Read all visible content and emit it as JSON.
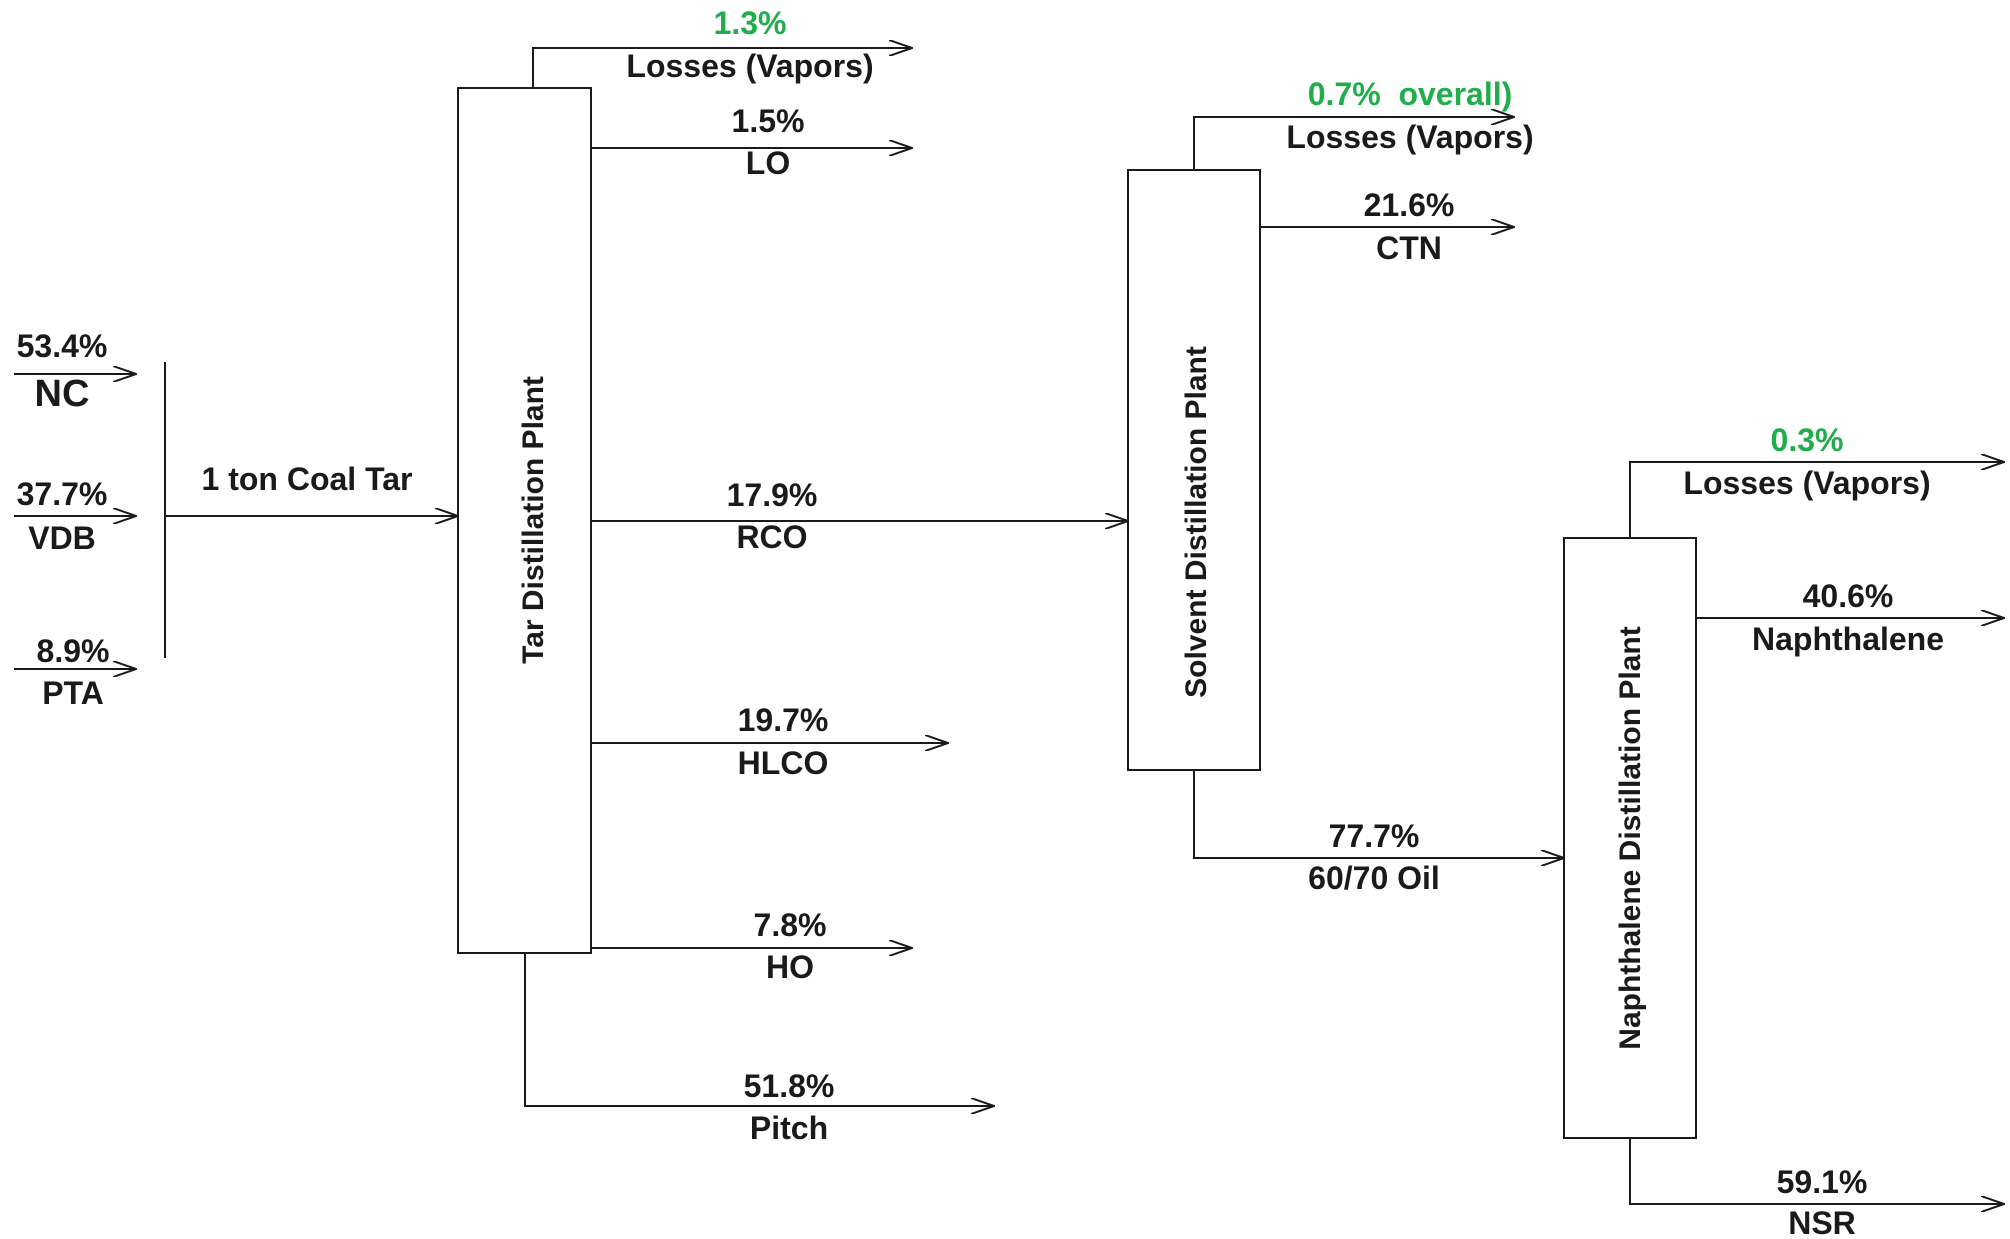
{
  "inputs": {
    "nc": {
      "pct": "53.4%",
      "name": "NC"
    },
    "vdb": {
      "pct": "37.7%",
      "name": "VDB"
    },
    "pta": {
      "pct": "8.9%",
      "name": "PTA"
    },
    "feed_label": "1 ton Coal Tar"
  },
  "plants": {
    "tar": "Tar Distillation Plant",
    "solvent": "Solvent Distillation Plant",
    "naphthalene": "Naphthalene Distillation Plant"
  },
  "tar_outputs": {
    "losses": {
      "pct": "1.3%",
      "name": "Losses (Vapors)"
    },
    "lo": {
      "pct": "1.5%",
      "name": "LO"
    },
    "rco": {
      "pct": "17.9%",
      "name": "RCO"
    },
    "hlco": {
      "pct": "19.7%",
      "name": "HLCO"
    },
    "ho": {
      "pct": "7.8%",
      "name": "HO"
    },
    "pitch": {
      "pct": "51.8%",
      "name": "Pitch"
    }
  },
  "solvent_outputs": {
    "losses": {
      "pct": "0.7%  overall)",
      "name": "Losses (Vapors)"
    },
    "ctn": {
      "pct": "21.6%",
      "name": "CTN"
    },
    "oil": {
      "pct": "77.7%",
      "name": "60/70 Oil"
    }
  },
  "naphthalene_outputs": {
    "losses": {
      "pct": "0.3%",
      "name": "Losses (Vapors)"
    },
    "naphthalene": {
      "pct": "40.6%",
      "name": "Naphthalene"
    },
    "nsr": {
      "pct": "59.1%",
      "name": "NSR"
    }
  },
  "colors": {
    "line": "#1a1a1a",
    "losses_pct": "#1fae4b"
  }
}
